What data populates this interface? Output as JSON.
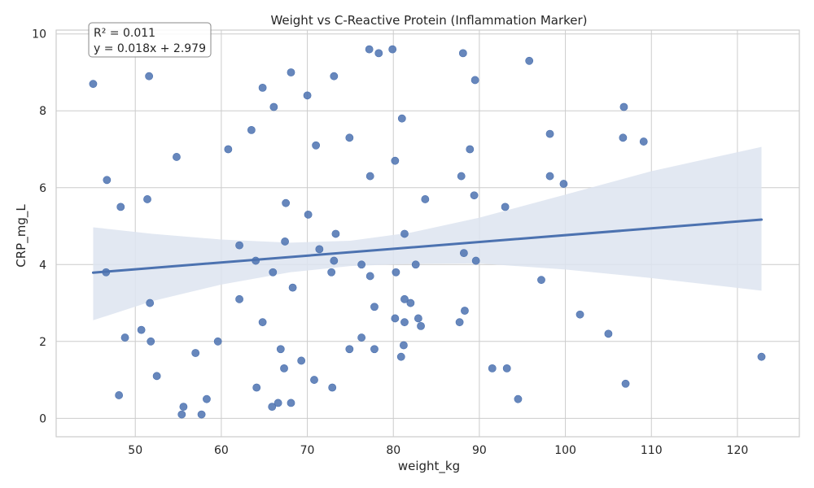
{
  "chart_data": {
    "type": "scatter",
    "title": "Weight vs C-Reactive Protein (Inflammation Marker)",
    "xlabel": "weight_kg",
    "ylabel": "CRP_mg_L",
    "xlim": [
      40.8,
      127.2
    ],
    "ylim": [
      -0.48,
      10.1
    ],
    "xticks": [
      50,
      60,
      70,
      80,
      90,
      100,
      110,
      120
    ],
    "yticks": [
      0,
      2,
      4,
      6,
      8,
      10
    ],
    "grid": true,
    "colors": {
      "points": "#4c72b0",
      "line": "#4c72b0",
      "band": "#dde4f0",
      "grid": "#cccccc",
      "frame": "#cccccc"
    },
    "points": [
      {
        "x": 45.1,
        "y": 8.7
      },
      {
        "x": 46.7,
        "y": 6.2
      },
      {
        "x": 46.6,
        "y": 3.8
      },
      {
        "x": 48.1,
        "y": 0.6
      },
      {
        "x": 48.3,
        "y": 5.5
      },
      {
        "x": 48.8,
        "y": 2.1
      },
      {
        "x": 50.7,
        "y": 2.3
      },
      {
        "x": 51.4,
        "y": 5.7
      },
      {
        "x": 51.6,
        "y": 8.9
      },
      {
        "x": 51.7,
        "y": 3.0
      },
      {
        "x": 51.8,
        "y": 2.0
      },
      {
        "x": 52.5,
        "y": 1.1
      },
      {
        "x": 54.8,
        "y": 6.8
      },
      {
        "x": 55.4,
        "y": 0.1
      },
      {
        "x": 55.6,
        "y": 0.3
      },
      {
        "x": 57.0,
        "y": 1.7
      },
      {
        "x": 57.7,
        "y": 0.1
      },
      {
        "x": 58.3,
        "y": 0.5
      },
      {
        "x": 59.6,
        "y": 2.0
      },
      {
        "x": 60.8,
        "y": 7.0
      },
      {
        "x": 62.1,
        "y": 4.5
      },
      {
        "x": 62.1,
        "y": 3.1
      },
      {
        "x": 63.5,
        "y": 7.5
      },
      {
        "x": 64.0,
        "y": 4.1
      },
      {
        "x": 64.1,
        "y": 0.8
      },
      {
        "x": 64.8,
        "y": 8.6
      },
      {
        "x": 64.8,
        "y": 2.5
      },
      {
        "x": 65.9,
        "y": 0.3
      },
      {
        "x": 66.1,
        "y": 8.1
      },
      {
        "x": 66.0,
        "y": 3.8
      },
      {
        "x": 66.6,
        "y": 0.4
      },
      {
        "x": 66.9,
        "y": 1.8
      },
      {
        "x": 67.3,
        "y": 1.3
      },
      {
        "x": 67.4,
        "y": 4.6
      },
      {
        "x": 67.5,
        "y": 5.6
      },
      {
        "x": 68.1,
        "y": 9.0
      },
      {
        "x": 68.1,
        "y": 0.4
      },
      {
        "x": 68.3,
        "y": 3.4
      },
      {
        "x": 69.3,
        "y": 1.5
      },
      {
        "x": 70.0,
        "y": 8.4
      },
      {
        "x": 70.1,
        "y": 5.3
      },
      {
        "x": 70.8,
        "y": 1.0
      },
      {
        "x": 71.0,
        "y": 7.1
      },
      {
        "x": 71.4,
        "y": 4.4
      },
      {
        "x": 72.8,
        "y": 3.8
      },
      {
        "x": 72.9,
        "y": 0.8
      },
      {
        "x": 73.1,
        "y": 8.9
      },
      {
        "x": 73.1,
        "y": 4.1
      },
      {
        "x": 73.3,
        "y": 4.8
      },
      {
        "x": 74.9,
        "y": 7.3
      },
      {
        "x": 74.9,
        "y": 1.8
      },
      {
        "x": 76.3,
        "y": 4.0
      },
      {
        "x": 76.3,
        "y": 2.1
      },
      {
        "x": 77.2,
        "y": 9.6
      },
      {
        "x": 77.3,
        "y": 6.3
      },
      {
        "x": 77.3,
        "y": 3.7
      },
      {
        "x": 77.8,
        "y": 2.9
      },
      {
        "x": 77.8,
        "y": 1.8
      },
      {
        "x": 78.3,
        "y": 9.5
      },
      {
        "x": 79.9,
        "y": 9.6
      },
      {
        "x": 80.2,
        "y": 6.7
      },
      {
        "x": 80.3,
        "y": 3.8
      },
      {
        "x": 80.2,
        "y": 2.6
      },
      {
        "x": 80.9,
        "y": 1.6
      },
      {
        "x": 81.0,
        "y": 7.8
      },
      {
        "x": 81.3,
        "y": 4.8
      },
      {
        "x": 81.3,
        "y": 3.1
      },
      {
        "x": 81.3,
        "y": 2.5
      },
      {
        "x": 81.2,
        "y": 1.9
      },
      {
        "x": 82.0,
        "y": 3.0
      },
      {
        "x": 82.6,
        "y": 4.0
      },
      {
        "x": 82.9,
        "y": 2.6
      },
      {
        "x": 83.2,
        "y": 2.4
      },
      {
        "x": 83.7,
        "y": 5.7
      },
      {
        "x": 87.7,
        "y": 2.5
      },
      {
        "x": 87.9,
        "y": 6.3
      },
      {
        "x": 88.1,
        "y": 9.5
      },
      {
        "x": 88.2,
        "y": 4.3
      },
      {
        "x": 88.3,
        "y": 2.8
      },
      {
        "x": 88.9,
        "y": 7.0
      },
      {
        "x": 89.4,
        "y": 5.8
      },
      {
        "x": 89.5,
        "y": 8.8
      },
      {
        "x": 89.6,
        "y": 4.1
      },
      {
        "x": 91.5,
        "y": 1.3
      },
      {
        "x": 93.0,
        "y": 5.5
      },
      {
        "x": 93.2,
        "y": 1.3
      },
      {
        "x": 94.5,
        "y": 0.5
      },
      {
        "x": 95.8,
        "y": 9.3
      },
      {
        "x": 97.2,
        "y": 3.6
      },
      {
        "x": 98.2,
        "y": 7.4
      },
      {
        "x": 98.2,
        "y": 6.3
      },
      {
        "x": 99.8,
        "y": 6.1
      },
      {
        "x": 101.7,
        "y": 2.7
      },
      {
        "x": 105.0,
        "y": 2.2
      },
      {
        "x": 106.8,
        "y": 8.1
      },
      {
        "x": 106.7,
        "y": 7.3
      },
      {
        "x": 107.0,
        "y": 0.9
      },
      {
        "x": 109.1,
        "y": 7.2
      },
      {
        "x": 122.8,
        "y": 1.6
      }
    ],
    "regression": {
      "x_range": [
        45.1,
        122.8
      ],
      "line_y": [
        3.79,
        5.17
      ],
      "ci": [
        {
          "x": 45.1,
          "lo": 2.55,
          "hi": 4.97
        },
        {
          "x": 52.0,
          "lo": 3.05,
          "hi": 4.8
        },
        {
          "x": 60.0,
          "lo": 3.48,
          "hi": 4.65
        },
        {
          "x": 68.0,
          "lo": 3.8,
          "hi": 4.57
        },
        {
          "x": 75.0,
          "lo": 3.96,
          "hi": 4.62
        },
        {
          "x": 82.0,
          "lo": 4.02,
          "hi": 4.83
        },
        {
          "x": 90.0,
          "lo": 4.03,
          "hi": 5.22
        },
        {
          "x": 100.0,
          "lo": 3.87,
          "hi": 5.82
        },
        {
          "x": 110.0,
          "lo": 3.65,
          "hi": 6.43
        },
        {
          "x": 122.8,
          "lo": 3.32,
          "hi": 7.06
        }
      ]
    },
    "annotation": {
      "line1": "R² = 0.011",
      "line2": "y = 0.018x + 2.979"
    }
  }
}
